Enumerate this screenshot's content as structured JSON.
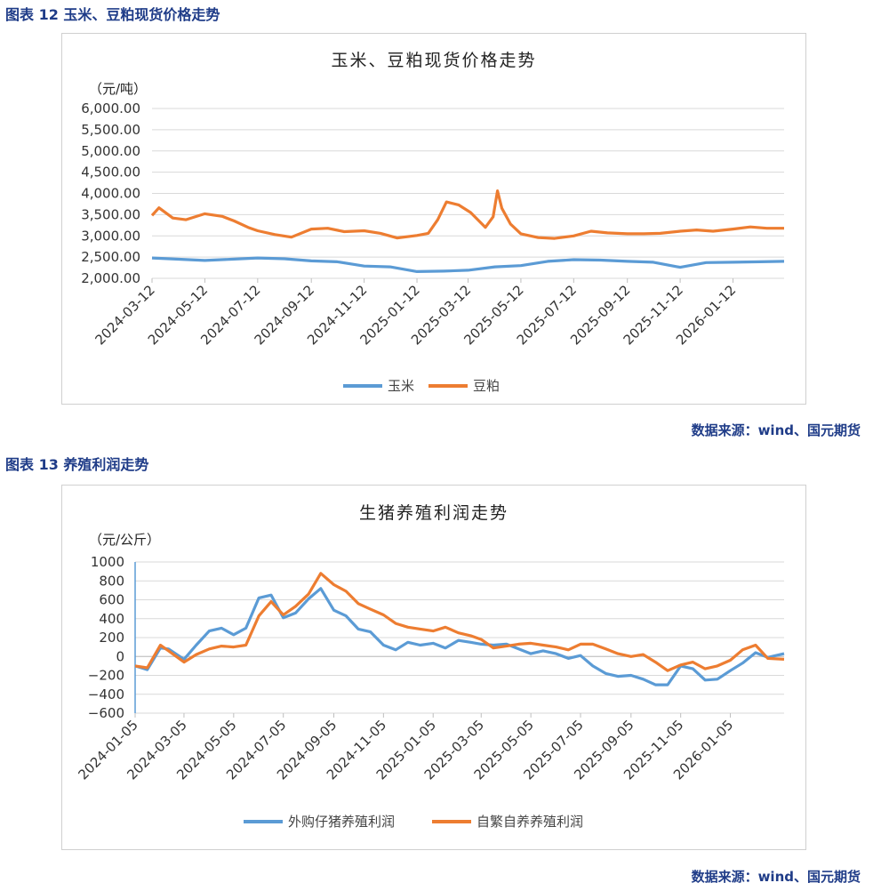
{
  "figure1": {
    "heading": "图表 12  玉米、豆粕现货价格走势",
    "source": "数据来源：wind、国元期货",
    "colors": {
      "corn": "#5b9bd5",
      "meal": "#ed7d31"
    }
  },
  "figure2": {
    "heading": "图表 13  养殖利润走势",
    "source": "数据来源：wind、国元期货",
    "colors": {
      "purchased": "#5b9bd5",
      "selfbred": "#ed7d31"
    }
  },
  "chart_data": [
    {
      "type": "line",
      "title": "玉米、豆粕现货价格走势",
      "unit": "（元/吨）",
      "ylim": [
        2000,
        6000
      ],
      "yticks": [
        2000,
        2500,
        3000,
        3500,
        4000,
        4500,
        5000,
        5500,
        6000
      ],
      "ytick_labels": [
        "2,000.00",
        "2,500.00",
        "3,000.00",
        "3,500.00",
        "4,000.00",
        "4,500.00",
        "5,000.00",
        "5,500.00",
        "6,000.00"
      ],
      "x_range": [
        "2024-03-12",
        "2026-03-12"
      ],
      "x_ticks": [
        "2024-03-12",
        "2024-05-12",
        "2024-07-12",
        "2024-09-12",
        "2024-11-12",
        "2025-01-12",
        "2025-03-12",
        "2025-05-12",
        "2025-07-12",
        "2025-09-12",
        "2025-11-12",
        "2026-01-12"
      ],
      "legend_position": "bottom",
      "grid": true,
      "series": [
        {
          "name": "玉米",
          "x": [
            "2024-03-12",
            "2024-04-12",
            "2024-05-12",
            "2024-06-12",
            "2024-07-12",
            "2024-08-12",
            "2024-09-12",
            "2024-10-12",
            "2024-11-12",
            "2024-12-12",
            "2025-01-12",
            "2025-02-12",
            "2025-03-12",
            "2025-04-12",
            "2025-05-12",
            "2025-06-12",
            "2025-07-12",
            "2025-08-12",
            "2025-09-12",
            "2025-10-12",
            "2025-11-12",
            "2025-12-12",
            "2026-01-12",
            "2026-02-12",
            "2026-03-12"
          ],
          "y": [
            2480,
            2450,
            2420,
            2450,
            2480,
            2460,
            2410,
            2390,
            2290,
            2270,
            2160,
            2170,
            2190,
            2270,
            2300,
            2400,
            2440,
            2430,
            2400,
            2380,
            2260,
            2370,
            2380,
            2390,
            2400
          ]
        },
        {
          "name": "豆粕",
          "x": [
            "2024-03-12",
            "2024-03-20",
            "2024-04-05",
            "2024-04-20",
            "2024-05-12",
            "2024-06-01",
            "2024-06-15",
            "2024-07-01",
            "2024-07-12",
            "2024-08-01",
            "2024-08-20",
            "2024-09-12",
            "2024-10-01",
            "2024-10-20",
            "2024-11-12",
            "2024-12-01",
            "2024-12-20",
            "2025-01-12",
            "2025-01-25",
            "2025-02-05",
            "2025-02-15",
            "2025-03-01",
            "2025-03-15",
            "2025-04-01",
            "2025-04-10",
            "2025-04-15",
            "2025-04-20",
            "2025-04-30",
            "2025-05-12",
            "2025-06-01",
            "2025-06-20",
            "2025-07-12",
            "2025-08-01",
            "2025-08-20",
            "2025-09-12",
            "2025-10-01",
            "2025-10-20",
            "2025-11-12",
            "2025-12-01",
            "2025-12-20",
            "2026-01-12",
            "2026-02-01",
            "2026-02-20",
            "2026-03-12"
          ],
          "y": [
            3480,
            3660,
            3420,
            3380,
            3520,
            3460,
            3350,
            3200,
            3120,
            3030,
            2970,
            3160,
            3180,
            3100,
            3120,
            3060,
            2950,
            3010,
            3060,
            3380,
            3800,
            3730,
            3550,
            3200,
            3450,
            4060,
            3650,
            3280,
            3050,
            2960,
            2940,
            3000,
            3110,
            3070,
            3050,
            3050,
            3060,
            3110,
            3140,
            3110,
            3160,
            3210,
            3180,
            3180
          ]
        }
      ]
    },
    {
      "type": "line",
      "title": "生猪养殖利润走势",
      "unit": "（元/公斤）",
      "ylim": [
        -600,
        1000
      ],
      "yticks": [
        -600,
        -400,
        -200,
        0,
        200,
        400,
        600,
        800,
        1000
      ],
      "ytick_labels": [
        "−600",
        "−400",
        "−200",
        "0",
        "200",
        "400",
        "600",
        "800",
        "1000"
      ],
      "x_range": [
        "2024-01-05",
        "2026-03-12"
      ],
      "x_ticks": [
        "2024-01-05",
        "2024-03-05",
        "2024-05-05",
        "2024-07-05",
        "2024-09-05",
        "2024-11-05",
        "2025-01-05",
        "2025-03-05",
        "2025-05-05",
        "2025-07-05",
        "2025-09-05",
        "2025-11-05",
        "2026-01-05"
      ],
      "legend_position": "bottom",
      "grid": true,
      "series": [
        {
          "name": "外购仔猪养殖利润",
          "x": [
            "2024-01-05",
            "2024-01-20",
            "2024-02-05",
            "2024-02-15",
            "2024-03-05",
            "2024-03-20",
            "2024-04-05",
            "2024-04-20",
            "2024-05-05",
            "2024-05-20",
            "2024-06-05",
            "2024-06-20",
            "2024-07-05",
            "2024-07-20",
            "2024-08-05",
            "2024-08-20",
            "2024-09-05",
            "2024-09-20",
            "2024-10-05",
            "2024-10-20",
            "2024-11-05",
            "2024-11-20",
            "2024-12-05",
            "2024-12-20",
            "2025-01-05",
            "2025-01-20",
            "2025-02-05",
            "2025-02-20",
            "2025-03-05",
            "2025-03-20",
            "2025-04-05",
            "2025-04-20",
            "2025-05-05",
            "2025-05-20",
            "2025-06-05",
            "2025-06-20",
            "2025-07-05",
            "2025-07-20",
            "2025-08-05",
            "2025-08-20",
            "2025-09-05",
            "2025-09-20",
            "2025-10-05",
            "2025-10-20",
            "2025-11-05",
            "2025-11-20",
            "2025-12-05",
            "2025-12-20",
            "2026-01-05",
            "2026-01-20",
            "2026-02-05",
            "2026-02-20",
            "2026-03-12"
          ],
          "y": [
            -100,
            -140,
            90,
            80,
            -30,
            120,
            270,
            300,
            230,
            300,
            620,
            650,
            410,
            460,
            610,
            720,
            490,
            430,
            290,
            260,
            120,
            70,
            150,
            120,
            140,
            90,
            170,
            150,
            130,
            120,
            130,
            80,
            30,
            60,
            30,
            -20,
            10,
            -100,
            -180,
            -210,
            -200,
            -240,
            -300,
            -300,
            -100,
            -130,
            -250,
            -240,
            -150,
            -70,
            40,
            -10,
            30
          ]
        },
        {
          "name": "自繁自养养殖利润",
          "x": [
            "2024-01-05",
            "2024-01-20",
            "2024-02-05",
            "2024-02-15",
            "2024-03-05",
            "2024-03-20",
            "2024-04-05",
            "2024-04-20",
            "2024-05-05",
            "2024-05-20",
            "2024-06-05",
            "2024-06-20",
            "2024-07-05",
            "2024-07-20",
            "2024-08-05",
            "2024-08-20",
            "2024-09-05",
            "2024-09-20",
            "2024-10-05",
            "2024-10-20",
            "2024-11-05",
            "2024-11-20",
            "2024-12-05",
            "2024-12-20",
            "2025-01-05",
            "2025-01-20",
            "2025-02-05",
            "2025-02-20",
            "2025-03-05",
            "2025-03-20",
            "2025-04-05",
            "2025-04-20",
            "2025-05-05",
            "2025-05-20",
            "2025-06-05",
            "2025-06-20",
            "2025-07-05",
            "2025-07-20",
            "2025-08-05",
            "2025-08-20",
            "2025-09-05",
            "2025-09-20",
            "2025-10-05",
            "2025-10-20",
            "2025-11-05",
            "2025-11-20",
            "2025-12-05",
            "2025-12-20",
            "2026-01-05",
            "2026-01-20",
            "2026-02-05",
            "2026-02-20",
            "2026-03-12"
          ],
          "y": [
            -100,
            -120,
            120,
            60,
            -60,
            20,
            80,
            110,
            100,
            120,
            430,
            580,
            440,
            530,
            660,
            880,
            760,
            690,
            560,
            500,
            440,
            350,
            310,
            290,
            270,
            310,
            250,
            220,
            180,
            90,
            110,
            130,
            140,
            120,
            100,
            70,
            130,
            130,
            80,
            30,
            0,
            20,
            -60,
            -150,
            -90,
            -60,
            -130,
            -100,
            -40,
            70,
            120,
            -20,
            -30
          ]
        }
      ]
    }
  ]
}
